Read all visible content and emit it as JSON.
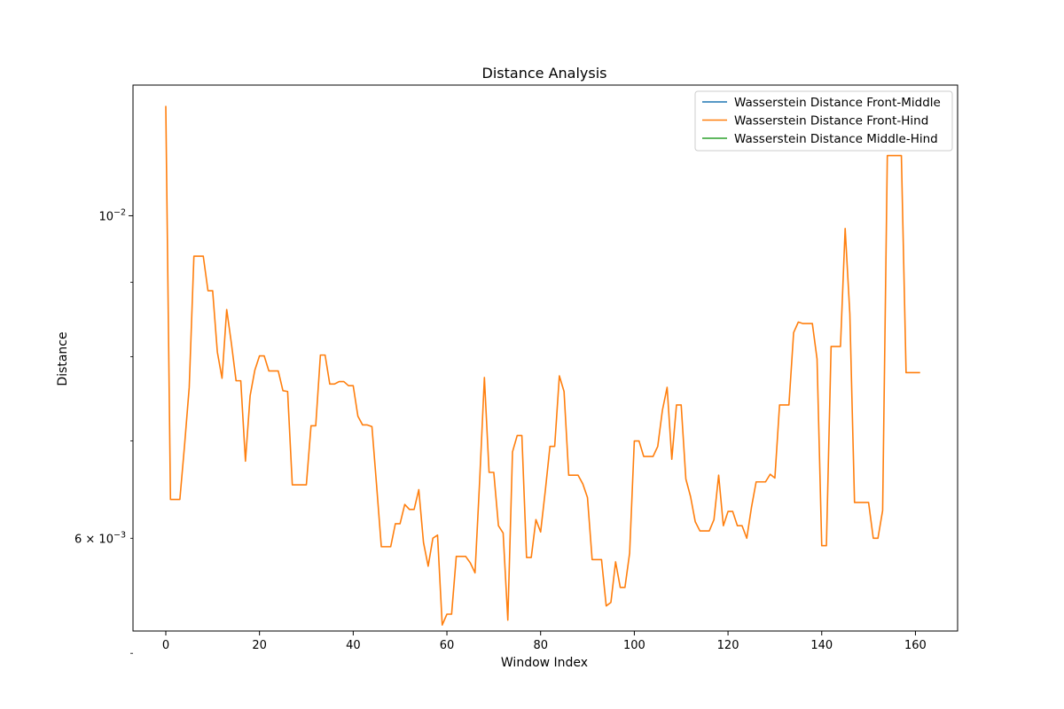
{
  "chart_data": {
    "type": "line",
    "title": "Distance Analysis",
    "xlabel": "Window Index",
    "ylabel": "Distance",
    "y_scale": "log",
    "xlim": [
      -7,
      169
    ],
    "ylim": [
      0.00518,
      0.0123
    ],
    "x_ticks": [
      0,
      20,
      40,
      60,
      80,
      100,
      120,
      140,
      160
    ],
    "y_major_ticks": [
      {
        "value": 0.01,
        "label": "10",
        "sup": "−2"
      }
    ],
    "y_minor_ticks": [
      {
        "value": 0.005
      },
      {
        "value": 0.006,
        "label": "6 × 10",
        "sup": "−3"
      },
      {
        "value": 0.007
      },
      {
        "value": 0.008
      },
      {
        "value": 0.009
      }
    ],
    "legend_position": "upper right",
    "grid": false,
    "series": [
      {
        "name": "Wasserstein Distance Front-Middle",
        "color": "#1f77b4",
        "values": []
      },
      {
        "name": "Wasserstein Distance Front-Hind",
        "color": "#ff7f0e",
        "values": [
          0.0119,
          0.00638,
          0.00638,
          0.00638,
          0.00695,
          0.00762,
          0.00938,
          0.00938,
          0.00938,
          0.00888,
          0.00888,
          0.00806,
          0.00773,
          0.00862,
          0.00817,
          0.0077,
          0.0077,
          0.00678,
          0.00752,
          0.00783,
          0.00801,
          0.00801,
          0.00782,
          0.00782,
          0.00782,
          0.00758,
          0.00757,
          0.00653,
          0.00653,
          0.00653,
          0.00653,
          0.00717,
          0.00717,
          0.00802,
          0.00802,
          0.00766,
          0.00766,
          0.00769,
          0.00769,
          0.00764,
          0.00764,
          0.00728,
          0.00718,
          0.00718,
          0.00716,
          0.00652,
          0.00592,
          0.00592,
          0.00592,
          0.00614,
          0.00614,
          0.00633,
          0.00628,
          0.00628,
          0.00648,
          0.00596,
          0.00574,
          0.006,
          0.00603,
          0.00523,
          0.00532,
          0.00532,
          0.00583,
          0.00583,
          0.00583,
          0.00577,
          0.00568,
          0.00658,
          0.00774,
          0.00666,
          0.00666,
          0.00612,
          0.00605,
          0.00527,
          0.00688,
          0.00706,
          0.00706,
          0.00582,
          0.00582,
          0.00618,
          0.00606,
          0.00647,
          0.00694,
          0.00694,
          0.00776,
          0.00757,
          0.00663,
          0.00663,
          0.00663,
          0.00654,
          0.0064,
          0.0058,
          0.0058,
          0.0058,
          0.00539,
          0.00542,
          0.00578,
          0.00555,
          0.00555,
          0.00586,
          0.007,
          0.007,
          0.00683,
          0.00683,
          0.00683,
          0.00694,
          0.00735,
          0.00762,
          0.0068,
          0.00741,
          0.00741,
          0.00659,
          0.00641,
          0.00616,
          0.00607,
          0.00607,
          0.00607,
          0.00618,
          0.00663,
          0.00612,
          0.00626,
          0.00626,
          0.00612,
          0.00612,
          0.006,
          0.0063,
          0.00656,
          0.00656,
          0.00656,
          0.00664,
          0.0066,
          0.00741,
          0.00741,
          0.00741,
          0.00831,
          0.00845,
          0.00843,
          0.00843,
          0.00843,
          0.00797,
          0.00593,
          0.00593,
          0.00813,
          0.00813,
          0.00813,
          0.0098,
          0.00856,
          0.00635,
          0.00635,
          0.00635,
          0.00635,
          0.006,
          0.006,
          0.00627,
          0.011,
          0.011,
          0.011,
          0.011,
          0.0078,
          0.0078,
          0.0078,
          0.0078
        ]
      },
      {
        "name": "Wasserstein Distance Middle-Hind",
        "color": "#2ca02c",
        "values": []
      }
    ]
  }
}
